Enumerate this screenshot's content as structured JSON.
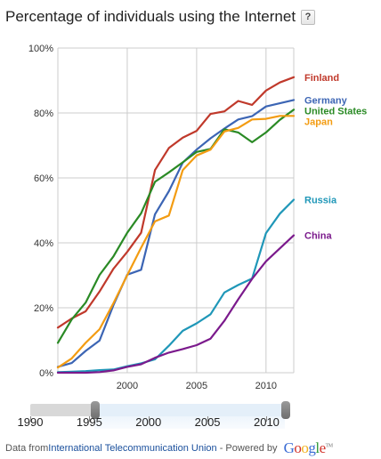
{
  "header": {
    "title": "Percentage of individuals using the Internet",
    "help_label": "?"
  },
  "slider": {
    "labels": [
      "1990",
      "1995",
      "2000",
      "2005",
      "2010"
    ],
    "selected_start": 1995,
    "selected_end": 2012
  },
  "footer": {
    "prefix": "Data from ",
    "source_link": "International Telecommunication Union",
    "separator": " - Powered by ",
    "google": [
      "G",
      "o",
      "o",
      "g",
      "l",
      "e"
    ],
    "google_colors": [
      "#3a6cd4",
      "#d2322a",
      "#f2b01e",
      "#3a6cd4",
      "#2f9a3a",
      "#d2322a"
    ],
    "trademark": "TM"
  },
  "chart_data": {
    "type": "line",
    "title": "Percentage of individuals using the Internet",
    "xlabel": "",
    "ylabel": "",
    "xlim": [
      1995,
      2012
    ],
    "ylim": [
      0,
      100
    ],
    "x_ticks": [
      "2000",
      "2005",
      "2010"
    ],
    "y_ticks": [
      "0%",
      "20%",
      "40%",
      "60%",
      "80%",
      "100%"
    ],
    "grid": true,
    "legend": "right, inline at line ends",
    "x": [
      1995,
      1996,
      1997,
      1998,
      1999,
      2000,
      2001,
      2002,
      2003,
      2004,
      2005,
      2006,
      2007,
      2008,
      2009,
      2010,
      2011,
      2012
    ],
    "series": [
      {
        "name": "Finland",
        "color": "#c0392b",
        "values": [
          13.9,
          16.7,
          18.9,
          25.0,
          32.0,
          37.2,
          43.1,
          62.4,
          69.2,
          72.4,
          74.5,
          79.7,
          80.5,
          83.7,
          82.5,
          86.9,
          89.4,
          91.0
        ]
      },
      {
        "name": "Germany",
        "color": "#3c65b4",
        "values": [
          1.8,
          3.0,
          6.7,
          9.9,
          20.8,
          30.2,
          31.7,
          48.8,
          55.9,
          64.7,
          68.7,
          72.2,
          75.2,
          78.0,
          79.0,
          82.0,
          83.0,
          84.0
        ]
      },
      {
        "name": "United States",
        "color": "#2a8a25",
        "values": [
          9.2,
          16.4,
          21.6,
          30.1,
          35.8,
          43.1,
          49.1,
          58.8,
          61.7,
          64.8,
          68.0,
          68.9,
          75.0,
          74.0,
          71.0,
          74.0,
          77.9,
          81.0
        ]
      },
      {
        "name": "Japan",
        "color": "#f39c12",
        "values": [
          1.6,
          4.4,
          9.2,
          13.4,
          21.4,
          30.0,
          38.5,
          46.6,
          48.4,
          62.4,
          66.9,
          68.7,
          74.3,
          75.4,
          78.0,
          78.2,
          79.1,
          79.1
        ]
      },
      {
        "name": "Russia",
        "color": "#1f97b8",
        "values": [
          0.2,
          0.3,
          0.5,
          0.8,
          1.0,
          2.0,
          2.9,
          4.1,
          8.3,
          12.9,
          15.2,
          18.0,
          24.7,
          27.0,
          29.0,
          43.0,
          49.0,
          53.3
        ]
      },
      {
        "name": "China",
        "color": "#7b1a8c",
        "values": [
          0.0,
          0.0,
          0.0,
          0.2,
          0.7,
          1.8,
          2.6,
          4.6,
          6.2,
          7.3,
          8.5,
          10.5,
          16.0,
          22.6,
          28.9,
          34.3,
          38.3,
          42.3
        ]
      }
    ]
  }
}
